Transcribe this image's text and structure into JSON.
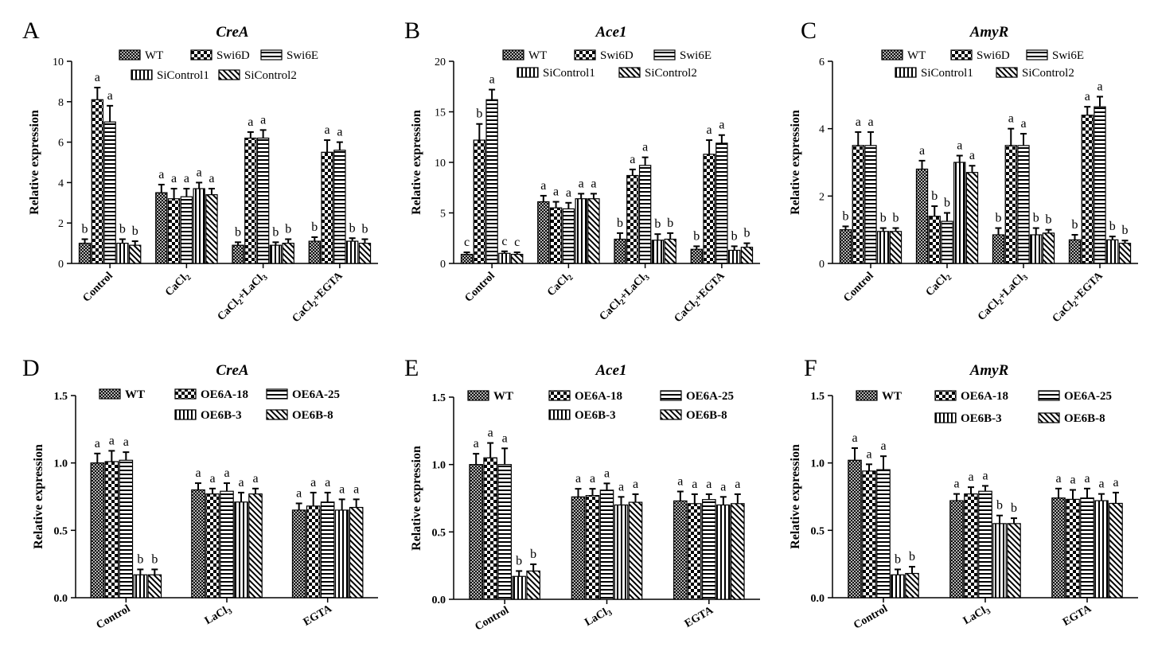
{
  "chart_data": [
    {
      "panel": "A",
      "title": "CreA",
      "type": "bar",
      "ylabel": "Relative expression",
      "ylim": [
        0,
        10
      ],
      "yticks": [
        "0",
        "2",
        "4",
        "6",
        "8",
        "10"
      ],
      "categories": [
        {
          "base": "Control"
        },
        {
          "base": "CaCl",
          "sub": "2"
        },
        {
          "base": "CaCl",
          "sub": "2",
          "rest": "+LaCl",
          "sub2": "3"
        },
        {
          "base": "CaCl",
          "sub": "2",
          "rest": "+EGTA"
        }
      ],
      "series": [
        {
          "name": "WT",
          "pattern": "cross",
          "values": [
            1.0,
            3.5,
            0.9,
            1.1
          ],
          "errors": [
            0.2,
            0.4,
            0.15,
            0.2
          ],
          "sig": [
            "b",
            "a",
            "b",
            "b"
          ]
        },
        {
          "name": "Swi6D",
          "pattern": "checker",
          "values": [
            8.1,
            3.2,
            6.2,
            5.5
          ],
          "errors": [
            0.6,
            0.5,
            0.3,
            0.6
          ],
          "sig": [
            "a",
            "a",
            "a",
            "a"
          ]
        },
        {
          "name": "Swi6E",
          "pattern": "hlines",
          "values": [
            7.0,
            3.3,
            6.2,
            5.6
          ],
          "errors": [
            0.8,
            0.4,
            0.4,
            0.4
          ],
          "sig": [
            "a",
            "a",
            "a",
            "a"
          ]
        },
        {
          "name": "SiControl1",
          "pattern": "vlines",
          "values": [
            1.0,
            3.7,
            0.9,
            1.1
          ],
          "errors": [
            0.2,
            0.3,
            0.15,
            0.15
          ],
          "sig": [
            "b",
            "a",
            "b",
            "b"
          ]
        },
        {
          "name": "SiControl2",
          "pattern": "diag",
          "values": [
            0.9,
            3.4,
            1.0,
            1.0
          ],
          "errors": [
            0.2,
            0.3,
            0.2,
            0.2
          ],
          "sig": [
            "b",
            "a",
            "b",
            "b"
          ]
        }
      ]
    },
    {
      "panel": "B",
      "title": "Ace1",
      "type": "bar",
      "ylabel": "Relative expression",
      "ylim": [
        0,
        20
      ],
      "yticks": [
        "0",
        "5",
        "10",
        "15",
        "20"
      ],
      "categories": [
        {
          "base": "Control"
        },
        {
          "base": "CaCl",
          "sub": "2"
        },
        {
          "base": "CaCl",
          "sub": "2",
          "rest": "+LaCl",
          "sub2": "3"
        },
        {
          "base": "CaCl",
          "sub": "2",
          "rest": "+EGTA"
        }
      ],
      "series": [
        {
          "name": "WT",
          "pattern": "cross",
          "values": [
            0.9,
            6.1,
            2.4,
            1.4
          ],
          "errors": [
            0.2,
            0.6,
            0.6,
            0.3
          ],
          "sig": [
            "c",
            "a",
            "b",
            "b"
          ]
        },
        {
          "name": "Swi6D",
          "pattern": "checker",
          "values": [
            12.2,
            5.5,
            8.7,
            10.8
          ],
          "errors": [
            1.6,
            0.6,
            0.6,
            1.4
          ],
          "sig": [
            "b",
            "a",
            "a",
            "a"
          ]
        },
        {
          "name": "Swi6E",
          "pattern": "hlines",
          "values": [
            16.2,
            5.4,
            9.7,
            11.9
          ],
          "errors": [
            1.0,
            0.6,
            0.8,
            0.8
          ],
          "sig": [
            "a",
            "a",
            "a",
            "a"
          ]
        },
        {
          "name": "SiControl1",
          "pattern": "vlines",
          "values": [
            1.0,
            6.4,
            2.3,
            1.3
          ],
          "errors": [
            0.2,
            0.5,
            0.6,
            0.4
          ],
          "sig": [
            "c",
            "a",
            "b",
            "b"
          ]
        },
        {
          "name": "SiControl2",
          "pattern": "diag",
          "values": [
            0.9,
            6.4,
            2.4,
            1.6
          ],
          "errors": [
            0.2,
            0.5,
            0.6,
            0.4
          ],
          "sig": [
            "c",
            "a",
            "b",
            "b"
          ]
        }
      ]
    },
    {
      "panel": "C",
      "title": "AmyR",
      "type": "bar",
      "ylabel": "Relative expression",
      "ylim": [
        0,
        6
      ],
      "yticks": [
        "0",
        "2",
        "4",
        "6"
      ],
      "categories": [
        {
          "base": "Control"
        },
        {
          "base": "CaCl",
          "sub": "2"
        },
        {
          "base": "CaCl",
          "sub": "2",
          "rest": "+LaCl",
          "sub2": "3"
        },
        {
          "base": "CaCl",
          "sub": "2",
          "rest": "+EGTA"
        }
      ],
      "series": [
        {
          "name": "WT",
          "pattern": "cross",
          "values": [
            1.0,
            2.8,
            0.85,
            0.7
          ],
          "errors": [
            0.1,
            0.25,
            0.2,
            0.15
          ],
          "sig": [
            "b",
            "a",
            "b",
            "b"
          ]
        },
        {
          "name": "Swi6D",
          "pattern": "checker",
          "values": [
            3.5,
            1.4,
            3.5,
            4.4
          ],
          "errors": [
            0.4,
            0.3,
            0.5,
            0.25
          ],
          "sig": [
            "a",
            "b",
            "a",
            "a"
          ]
        },
        {
          "name": "Swi6E",
          "pattern": "hlines",
          "values": [
            3.5,
            1.25,
            3.5,
            4.65
          ],
          "errors": [
            0.4,
            0.25,
            0.35,
            0.3
          ],
          "sig": [
            "a",
            "b",
            "a",
            "a"
          ]
        },
        {
          "name": "SiControl1",
          "pattern": "vlines",
          "values": [
            0.95,
            3.0,
            0.85,
            0.7
          ],
          "errors": [
            0.1,
            0.2,
            0.2,
            0.1
          ],
          "sig": [
            "b",
            "a",
            "b",
            "b"
          ]
        },
        {
          "name": "SiControl2",
          "pattern": "diag",
          "values": [
            0.95,
            2.7,
            0.9,
            0.6
          ],
          "errors": [
            0.1,
            0.2,
            0.1,
            0.08
          ],
          "sig": [
            "b",
            "a",
            "b",
            "b"
          ]
        }
      ]
    },
    {
      "panel": "D",
      "title": "CreA",
      "type": "bar",
      "ylabel": "Relative expression",
      "ylim": [
        0,
        1.5
      ],
      "yticks": [
        "0.0",
        "0.5",
        "1.0",
        "1.5"
      ],
      "categories": [
        {
          "base": "Control"
        },
        {
          "base": "LaCl",
          "sub": "3"
        },
        {
          "base": "EGTA"
        }
      ],
      "series": [
        {
          "name": "WT",
          "pattern": "cross",
          "values": [
            1.0,
            0.8,
            0.65
          ],
          "errors": [
            0.07,
            0.05,
            0.05
          ],
          "sig": [
            "a",
            "a",
            "a"
          ]
        },
        {
          "name": "OE6A-18",
          "pattern": "checker",
          "values": [
            1.01,
            0.77,
            0.68
          ],
          "errors": [
            0.08,
            0.04,
            0.1
          ],
          "sig": [
            "a",
            "a",
            "a"
          ]
        },
        {
          "name": "OE6A-25",
          "pattern": "hlines",
          "values": [
            1.02,
            0.79,
            0.71
          ],
          "errors": [
            0.06,
            0.06,
            0.07
          ],
          "sig": [
            "a",
            "a",
            "a"
          ]
        },
        {
          "name": "OE6B-3",
          "pattern": "vlines",
          "values": [
            0.17,
            0.71,
            0.65
          ],
          "errors": [
            0.04,
            0.07,
            0.08
          ],
          "sig": [
            "b",
            "a",
            "a"
          ]
        },
        {
          "name": "OE6B-8",
          "pattern": "diag",
          "values": [
            0.17,
            0.77,
            0.67
          ],
          "errors": [
            0.04,
            0.04,
            0.06
          ],
          "sig": [
            "b",
            "a",
            "a"
          ]
        }
      ]
    },
    {
      "panel": "E",
      "title": "Ace1",
      "type": "bar",
      "ylabel": "Relative expression",
      "ylim": [
        0,
        1.5
      ],
      "yticks": [
        "0.0",
        "0.5",
        "1.0",
        "1.5"
      ],
      "categories": [
        {
          "base": "Control"
        },
        {
          "base": "LaCl",
          "sub": "3"
        },
        {
          "base": "EGTA"
        }
      ],
      "series": [
        {
          "name": "WT",
          "pattern": "cross",
          "values": [
            1.0,
            0.76,
            0.73
          ],
          "errors": [
            0.08,
            0.06,
            0.07
          ],
          "sig": [
            "a",
            "a",
            "a"
          ]
        },
        {
          "name": "OE6A-18",
          "pattern": "checker",
          "values": [
            1.05,
            0.77,
            0.71
          ],
          "errors": [
            0.11,
            0.05,
            0.07
          ],
          "sig": [
            "a",
            "a",
            "a"
          ]
        },
        {
          "name": "OE6A-25",
          "pattern": "hlines",
          "values": [
            1.0,
            0.81,
            0.74
          ],
          "errors": [
            0.12,
            0.05,
            0.04
          ],
          "sig": [
            "a",
            "a",
            "a"
          ]
        },
        {
          "name": "OE6B-3",
          "pattern": "vlines",
          "values": [
            0.17,
            0.7,
            0.7
          ],
          "errors": [
            0.04,
            0.06,
            0.06
          ],
          "sig": [
            "b",
            "a",
            "a"
          ]
        },
        {
          "name": "OE6B-8",
          "pattern": "diag",
          "values": [
            0.21,
            0.72,
            0.71
          ],
          "errors": [
            0.05,
            0.06,
            0.07
          ],
          "sig": [
            "b",
            "a",
            "a"
          ]
        }
      ]
    },
    {
      "panel": "F",
      "title": "AmyR",
      "type": "bar",
      "ylabel": "Relative expression",
      "ylim": [
        0,
        1.5
      ],
      "yticks": [
        "0.0",
        "0.5",
        "1.0",
        "1.5"
      ],
      "categories": [
        {
          "base": "Control"
        },
        {
          "base": "LaCl",
          "sub": "3"
        },
        {
          "base": "EGTA"
        }
      ],
      "series": [
        {
          "name": "WT",
          "pattern": "cross",
          "values": [
            1.02,
            0.72,
            0.74
          ],
          "errors": [
            0.09,
            0.05,
            0.07
          ],
          "sig": [
            "a",
            "a",
            "a"
          ]
        },
        {
          "name": "OE6A-18",
          "pattern": "checker",
          "values": [
            0.94,
            0.77,
            0.73
          ],
          "errors": [
            0.05,
            0.05,
            0.07
          ],
          "sig": [
            "a",
            "a",
            "a"
          ]
        },
        {
          "name": "OE6A-25",
          "pattern": "hlines",
          "values": [
            0.95,
            0.79,
            0.74
          ],
          "errors": [
            0.1,
            0.04,
            0.07
          ],
          "sig": [
            "a",
            "a",
            "a"
          ]
        },
        {
          "name": "OE6B-3",
          "pattern": "vlines",
          "values": [
            0.17,
            0.55,
            0.72
          ],
          "errors": [
            0.04,
            0.06,
            0.05
          ],
          "sig": [
            "b",
            "b",
            "a"
          ]
        },
        {
          "name": "OE6B-8",
          "pattern": "diag",
          "values": [
            0.18,
            0.55,
            0.7
          ],
          "errors": [
            0.05,
            0.04,
            0.08
          ],
          "sig": [
            "b",
            "b",
            "a"
          ]
        }
      ]
    }
  ]
}
